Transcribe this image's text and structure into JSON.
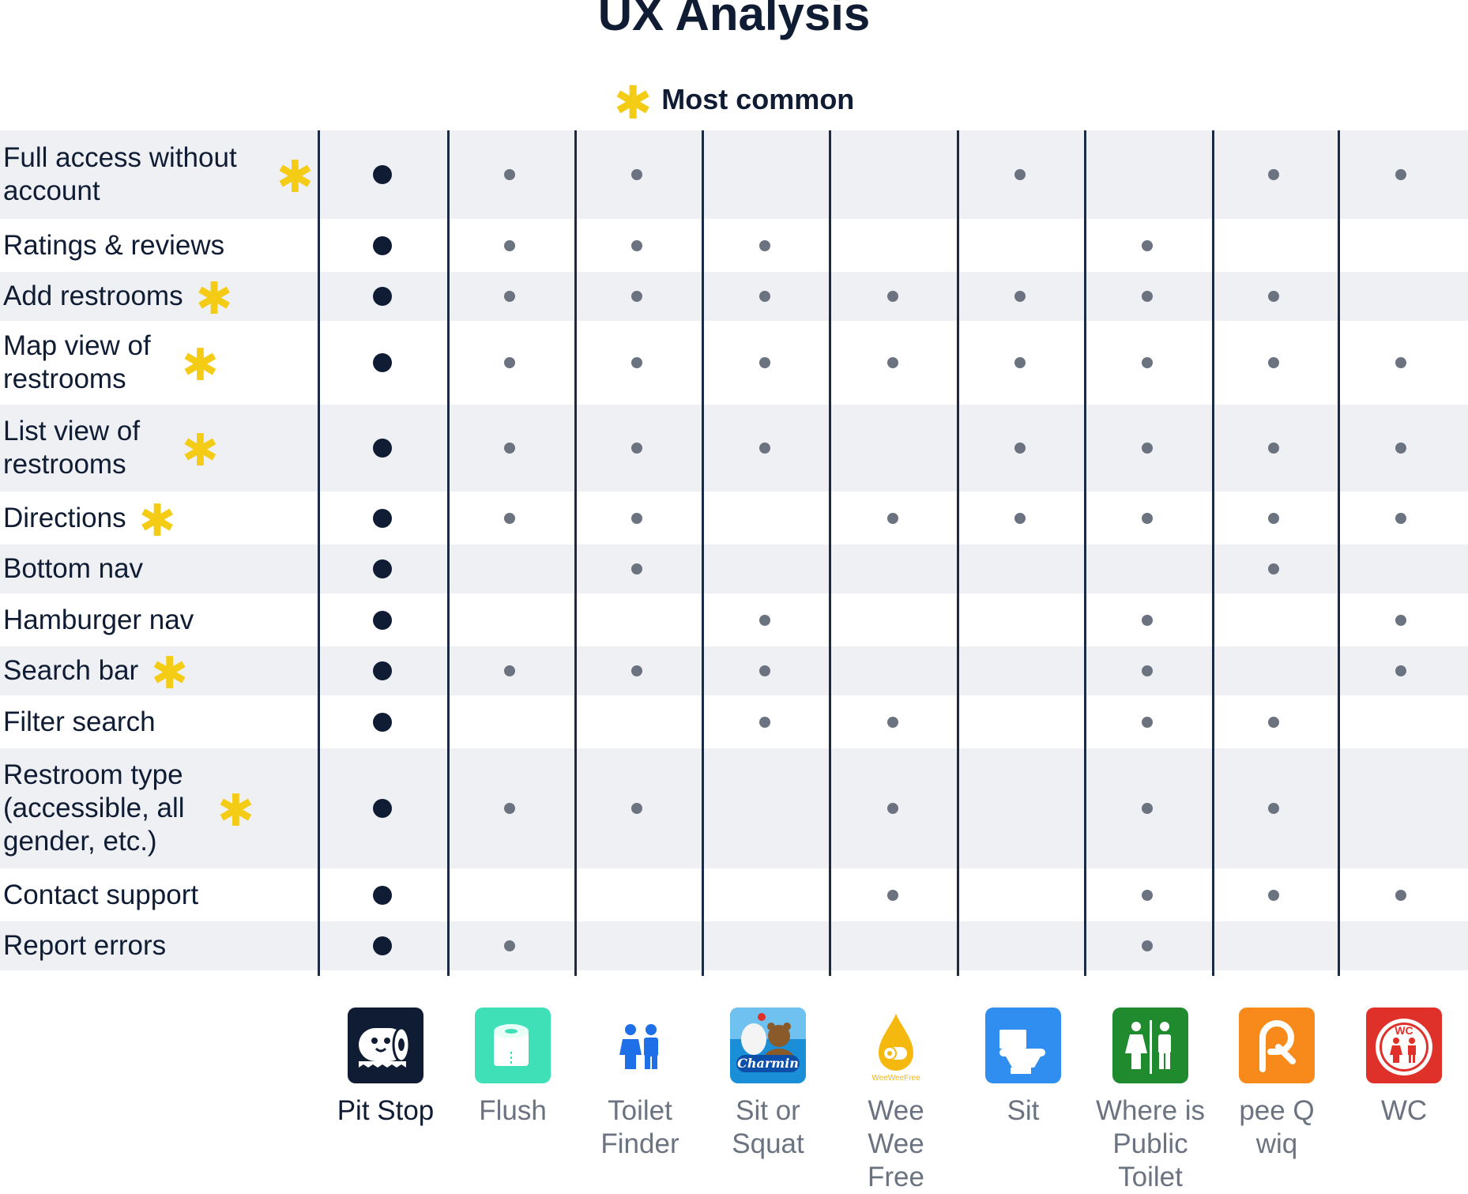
{
  "title": "UX Analysis",
  "legend": {
    "icon": "asterisk-star-icon",
    "label": "Most common",
    "color": "#F5CC15"
  },
  "colors": {
    "primary_dot": "#0F1C33",
    "other_dot": "#6B7380",
    "row_alt_bg": "#EEF0F3",
    "divider": "#1B2A45"
  },
  "apps": [
    {
      "name": "Pit Stop",
      "icon": "pit-stop-toilet-roll-icon",
      "color": "#0F1C33"
    },
    {
      "name": "Flush",
      "icon": "flush-toilet-roll-icon",
      "color": "#3FE0B8"
    },
    {
      "name": "Toilet Finder",
      "icon": "toilet-finder-people-icon",
      "color": "#1E6FE8"
    },
    {
      "name": "Sit or Squat",
      "icon": "charmin-bear-icon",
      "color": "#1A8FD8"
    },
    {
      "name": "Wee Wee Free",
      "icon": "wee-wee-free-drop-icon",
      "color": "#F5B80F"
    },
    {
      "name": "Sit",
      "icon": "sit-toilet-icon",
      "color": "#2F8EF0"
    },
    {
      "name": "Where is Public Toilet",
      "icon": "where-is-public-toilet-icon",
      "color": "#1F8A2E"
    },
    {
      "name": "pee Q wiq",
      "icon": "pee-q-wiq-icon",
      "color": "#F78A1A"
    },
    {
      "name": "WC",
      "icon": "wc-sign-icon",
      "color": "#E0302A"
    }
  ],
  "features": [
    {
      "label": "Full access without account",
      "common": true,
      "has": [
        true,
        true,
        true,
        false,
        false,
        true,
        false,
        true,
        true
      ]
    },
    {
      "label": "Ratings & reviews",
      "common": false,
      "has": [
        true,
        true,
        true,
        true,
        false,
        false,
        true,
        false,
        false
      ]
    },
    {
      "label": "Add restrooms",
      "common": true,
      "has": [
        true,
        true,
        true,
        true,
        true,
        true,
        true,
        true,
        false
      ]
    },
    {
      "label": "Map view of restrooms",
      "common": true,
      "has": [
        true,
        true,
        true,
        true,
        true,
        true,
        true,
        true,
        true
      ]
    },
    {
      "label": "List view of restrooms",
      "common": true,
      "has": [
        true,
        true,
        true,
        true,
        false,
        true,
        true,
        true,
        true
      ]
    },
    {
      "label": "Directions",
      "common": true,
      "has": [
        true,
        true,
        true,
        false,
        true,
        true,
        true,
        true,
        true
      ]
    },
    {
      "label": "Bottom nav",
      "common": false,
      "has": [
        true,
        false,
        true,
        false,
        false,
        false,
        false,
        true,
        false
      ]
    },
    {
      "label": "Hamburger nav",
      "common": false,
      "has": [
        true,
        false,
        false,
        true,
        false,
        false,
        true,
        false,
        true
      ]
    },
    {
      "label": "Search bar",
      "common": true,
      "has": [
        true,
        true,
        true,
        true,
        false,
        false,
        true,
        false,
        true
      ]
    },
    {
      "label": "Filter search",
      "common": false,
      "has": [
        true,
        false,
        false,
        true,
        true,
        false,
        true,
        true,
        false
      ]
    },
    {
      "label": "Restroom type (accessible, all gender, etc.)",
      "common": true,
      "has": [
        true,
        true,
        true,
        false,
        true,
        false,
        true,
        true,
        false
      ]
    },
    {
      "label": "Contact support",
      "common": false,
      "has": [
        true,
        false,
        false,
        false,
        true,
        false,
        true,
        true,
        true
      ]
    },
    {
      "label": "Report errors",
      "common": false,
      "has": [
        true,
        true,
        false,
        false,
        false,
        false,
        true,
        false,
        false
      ]
    }
  ]
}
